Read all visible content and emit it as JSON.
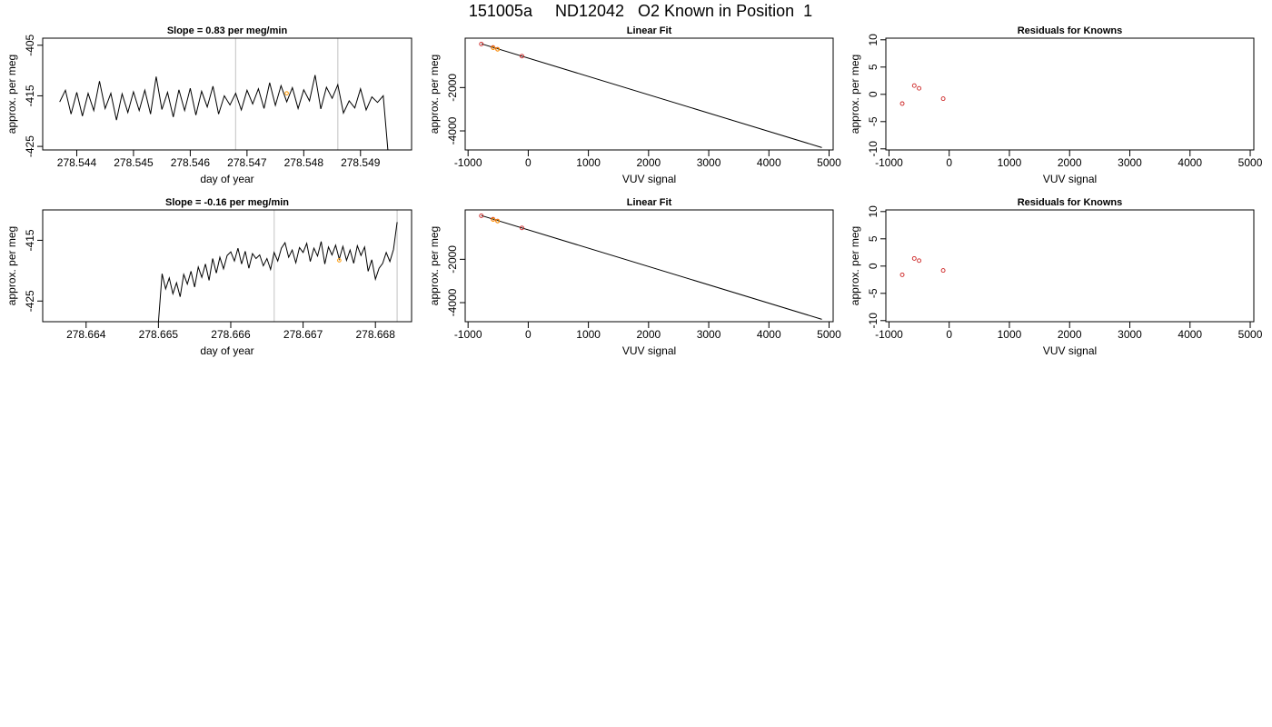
{
  "page_title": "151005a     ND12042   O2 Known in Position  1",
  "chart_data": [
    {
      "id": "ts1",
      "type": "line",
      "title": "Slope =  0.83  per meg/min",
      "xlabel": "day of year",
      "ylabel": "approx. per meg",
      "xlim": [
        278.5434,
        278.5499
      ],
      "ylim": [
        -425.7,
        -403.6
      ],
      "xticks": [
        278.544,
        278.545,
        278.546,
        278.547,
        278.548,
        278.549
      ],
      "yticks": [
        -425,
        -415,
        -405
      ],
      "vlines": [
        278.5468,
        278.5486
      ],
      "series": [
        {
          "color": "#000000",
          "x": [
            278.5437,
            278.5438,
            278.5439,
            278.544,
            278.5441,
            278.5442,
            278.5443,
            278.5444,
            278.5445,
            278.5446,
            278.5447,
            278.5448,
            278.5449,
            278.545,
            278.5451,
            278.5452,
            278.5453,
            278.5454,
            278.5455,
            278.5456,
            278.5457,
            278.5458,
            278.5459,
            278.546,
            278.5461,
            278.5462,
            278.5463,
            278.5464,
            278.5465,
            278.5466,
            278.5467,
            278.5468,
            278.5469,
            278.547,
            278.5471,
            278.5472,
            278.5473,
            278.5474,
            278.5475,
            278.5476,
            278.5477,
            278.5478,
            278.5479,
            278.548,
            278.5481,
            278.5482,
            278.5483,
            278.5484,
            278.5485,
            278.5486,
            278.5487,
            278.5488,
            278.5489,
            278.549,
            278.5491,
            278.5492,
            278.5493,
            278.5494,
            278.5495
          ],
          "y": [
            -416.2,
            -413.9,
            -418.6,
            -414.3,
            -419.0,
            -414.5,
            -417.9,
            -412.1,
            -417.5,
            -414.5,
            -419.8,
            -414.6,
            -418.3,
            -414.2,
            -417.9,
            -413.9,
            -418.6,
            -411.2,
            -417.7,
            -414.3,
            -419.2,
            -413.8,
            -417.9,
            -413.5,
            -418.8,
            -414.1,
            -417.2,
            -413.1,
            -418.6,
            -415.0,
            -416.8,
            -414.5,
            -417.8,
            -413.9,
            -416.6,
            -413.6,
            -417.5,
            -412.4,
            -416.9,
            -413.0,
            -416.2,
            -413.4,
            -417.5,
            -413.8,
            -416.0,
            -410.9,
            -417.6,
            -413.3,
            -415.5,
            -412.8,
            -418.4,
            -416.0,
            -417.4,
            -413.6,
            -417.8,
            -415.2,
            -416.3,
            -415.0,
            -428.0
          ]
        }
      ],
      "highlight": {
        "color": "#ff9900",
        "x": [
          278.5477
        ],
        "y": [
          -414.5
        ]
      }
    },
    {
      "id": "fit1",
      "type": "scatter",
      "title": "Linear Fit",
      "xlabel": "VUV signal",
      "ylabel": "approx. per meg",
      "xlim": [
        -1048,
        5068
      ],
      "ylim": [
        -4880,
        280
      ],
      "xticks": [
        -1000,
        0,
        1000,
        2000,
        3000,
        4000,
        5000
      ],
      "yticks": [
        -4000,
        -2000
      ],
      "fit_line": {
        "x": [
          -780,
          4880
        ],
        "y": [
          20,
          -4770
        ]
      },
      "series": [
        {
          "color": "#cc2222",
          "x": [
            -780,
            -585,
            -510,
            -105
          ],
          "y": [
            10,
            -150,
            -230,
            -550
          ]
        }
      ],
      "highlight": {
        "color": "#ff9900",
        "x": [
          -583,
          -508
        ],
        "y": [
          -170,
          -240
        ]
      }
    },
    {
      "id": "res1",
      "type": "scatter",
      "title": "Residuals for Knowns",
      "xlabel": "VUV signal",
      "ylabel": "approx. per meg",
      "xlim": [
        -1052,
        5060
      ],
      "ylim": [
        -10.2,
        10.3
      ],
      "xticks": [
        -1000,
        0,
        1000,
        2000,
        3000,
        4000,
        5000
      ],
      "yticks": [
        -10,
        -5,
        0,
        5,
        10
      ],
      "series": [
        {
          "color": "#cc2222",
          "x": [
            -780,
            -580,
            -500,
            -100
          ],
          "y": [
            -1.7,
            1.6,
            1.1,
            -0.8
          ]
        }
      ]
    },
    {
      "id": "ts2",
      "type": "line",
      "title": "Slope =  -0.16  per meg/min",
      "xlabel": "day of year",
      "ylabel": "approx. per meg",
      "xlim": [
        278.6634,
        278.6685
      ],
      "ylim": [
        -428.4,
        -410.0
      ],
      "xticks": [
        278.664,
        278.665,
        278.666,
        278.667,
        278.668
      ],
      "yticks": [
        -425,
        -415
      ],
      "vlines": [
        278.6666,
        278.6683
      ],
      "series": [
        {
          "color": "#000000",
          "x": [
            278.665,
            278.66505,
            278.6651,
            278.66515,
            278.6652,
            278.66525,
            278.6653,
            278.66535,
            278.6654,
            278.66545,
            278.6655,
            278.66555,
            278.6656,
            278.66565,
            278.6657,
            278.66575,
            278.6658,
            278.66585,
            278.6659,
            278.66595,
            278.666,
            278.66605,
            278.6661,
            278.66615,
            278.6662,
            278.66625,
            278.6663,
            278.66635,
            278.6664,
            278.66645,
            278.6665,
            278.66655,
            278.6666,
            278.66665,
            278.6667,
            278.66675,
            278.6668,
            278.66685,
            278.6669,
            278.66695,
            278.667,
            278.66705,
            278.6671,
            278.66715,
            278.6672,
            278.66725,
            278.6673,
            278.66735,
            278.6674,
            278.66745,
            278.6675,
            278.66755,
            278.6676,
            278.66765,
            278.6677,
            278.66775,
            278.6678,
            278.66785,
            278.6679,
            278.66795,
            278.668,
            278.66805,
            278.6681,
            278.66815,
            278.6682,
            278.66825,
            278.6683
          ],
          "y": [
            -428.4,
            -420.5,
            -423.0,
            -421.2,
            -423.8,
            -422.0,
            -424.3,
            -420.6,
            -422.2,
            -420.1,
            -422.7,
            -419.4,
            -421.1,
            -418.9,
            -421.6,
            -418.0,
            -420.4,
            -417.8,
            -419.7,
            -417.5,
            -416.9,
            -418.4,
            -416.3,
            -418.9,
            -416.8,
            -419.6,
            -417.2,
            -418.0,
            -417.4,
            -419.2,
            -418.0,
            -419.8,
            -417.0,
            -418.4,
            -416.3,
            -415.4,
            -417.8,
            -416.6,
            -418.7,
            -416.2,
            -417.0,
            -415.5,
            -418.5,
            -416.3,
            -417.6,
            -415.2,
            -418.9,
            -416.1,
            -417.4,
            -415.8,
            -418.1,
            -416.0,
            -418.3,
            -416.6,
            -418.8,
            -415.9,
            -417.5,
            -416.1,
            -420.1,
            -418.2,
            -421.4,
            -419.6,
            -418.8,
            -417.0,
            -418.5,
            -416.5,
            -412.0
          ]
        }
      ],
      "highlight": {
        "color": "#ff9900",
        "x": [
          278.6675
        ],
        "y": [
          -418.3
        ]
      }
    },
    {
      "id": "fit2",
      "type": "scatter",
      "title": "Linear Fit",
      "xlabel": "VUV signal",
      "ylabel": "approx. per meg",
      "xlim": [
        -1048,
        5068
      ],
      "ylim": [
        -4880,
        280
      ],
      "xticks": [
        -1000,
        0,
        1000,
        2000,
        3000,
        4000,
        5000
      ],
      "yticks": [
        -4000,
        -2000
      ],
      "fit_line": {
        "x": [
          -780,
          4880
        ],
        "y": [
          20,
          -4770
        ]
      },
      "series": [
        {
          "color": "#cc2222",
          "x": [
            -780,
            -585,
            -510,
            -105
          ],
          "y": [
            10,
            -150,
            -230,
            -550
          ]
        }
      ],
      "highlight": {
        "color": "#ff9900",
        "x": [
          -583,
          -508
        ],
        "y": [
          -170,
          -240
        ]
      }
    },
    {
      "id": "res2",
      "type": "scatter",
      "title": "Residuals for Knowns",
      "xlabel": "VUV signal",
      "ylabel": "approx. per meg",
      "xlim": [
        -1052,
        5060
      ],
      "ylim": [
        -10.2,
        10.3
      ],
      "xticks": [
        -1000,
        0,
        1000,
        2000,
        3000,
        4000,
        5000
      ],
      "yticks": [
        -10,
        -5,
        0,
        5,
        10
      ],
      "series": [
        {
          "color": "#cc2222",
          "x": [
            -780,
            -580,
            -500,
            -100
          ],
          "y": [
            -1.6,
            1.4,
            1.0,
            -0.8
          ]
        }
      ]
    }
  ]
}
